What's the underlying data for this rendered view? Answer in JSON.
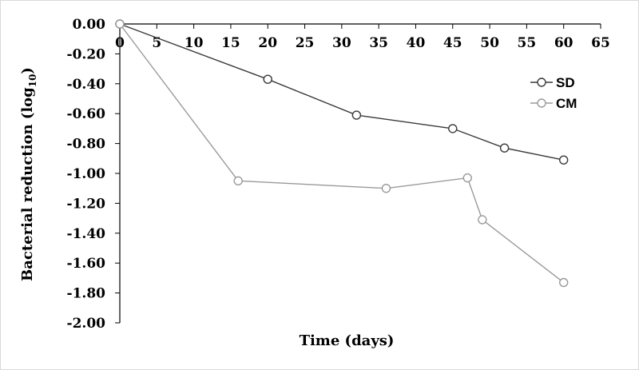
{
  "chart_data": {
    "type": "line",
    "xlabel": "Time (days)",
    "ylabel": "Bacterial reduction (log",
    "ylabel_sub": "10",
    "ylabel_close": ")",
    "xlim": [
      0,
      65
    ],
    "ylim": [
      -2.0,
      0.0
    ],
    "x_ticks": [
      "0",
      "5",
      "10",
      "15",
      "20",
      "25",
      "30",
      "35",
      "40",
      "45",
      "50",
      "55",
      "60",
      "65"
    ],
    "y_ticks": [
      "0.00",
      "-0.20",
      "-0.40",
      "-0.60",
      "-0.80",
      "-1.00",
      "-1.20",
      "-1.40",
      "-1.60",
      "-1.80",
      "-2.00"
    ],
    "legend_position": "top-right",
    "grid": false,
    "series": [
      {
        "name": "SD",
        "color": "#3a3a3a",
        "points": [
          {
            "x": 0,
            "y": 0.0
          },
          {
            "x": 20,
            "y": -0.37
          },
          {
            "x": 32,
            "y": -0.61
          },
          {
            "x": 45,
            "y": -0.7
          },
          {
            "x": 52,
            "y": -0.83
          },
          {
            "x": 60,
            "y": -0.91
          }
        ]
      },
      {
        "name": "CM",
        "color": "#9a9a9a",
        "points": [
          {
            "x": 0,
            "y": 0.0
          },
          {
            "x": 16,
            "y": -1.05
          },
          {
            "x": 36,
            "y": -1.1
          },
          {
            "x": 47,
            "y": -1.03
          },
          {
            "x": 49,
            "y": -1.31
          },
          {
            "x": 60,
            "y": -1.73
          }
        ]
      }
    ]
  }
}
